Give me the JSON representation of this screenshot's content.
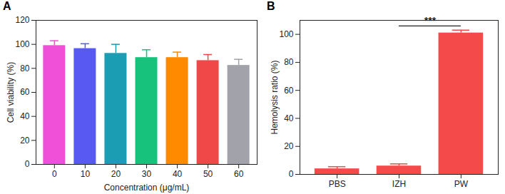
{
  "chart_data": [
    {
      "type": "bar",
      "title": "A",
      "xlabel": "Concentration (μg/mL)",
      "ylabel": "Cell viability (%)",
      "categories": [
        "0",
        "10",
        "20",
        "30",
        "40",
        "50",
        "60"
      ],
      "values": [
        99,
        96.5,
        92.5,
        89,
        89,
        86.5,
        82.5
      ],
      "errors": [
        4,
        4,
        7.5,
        6.5,
        4.5,
        5,
        5
      ],
      "colors": [
        "#f04fd8",
        "#5858f2",
        "#1b9db3",
        "#17c37c",
        "#ff8a00",
        "#f04848",
        "#a2a2aa"
      ],
      "ylim": [
        0,
        120
      ],
      "yticks": [
        0,
        20,
        40,
        60,
        80,
        100,
        120
      ]
    },
    {
      "type": "bar",
      "title": "B",
      "ylabel": "Hemolysis ratio (%)",
      "categories": [
        "PBS",
        "IZH",
        "PW"
      ],
      "values": [
        4,
        6,
        101
      ],
      "errors": [
        1.5,
        1.5,
        2
      ],
      "color": "#f44a4a",
      "ylim": [
        0,
        110
      ],
      "yticks": [
        0,
        20,
        40,
        60,
        80,
        100
      ],
      "annotations": [
        {
          "text": "***",
          "x1": "IZH",
          "x2": "PW"
        }
      ]
    }
  ]
}
